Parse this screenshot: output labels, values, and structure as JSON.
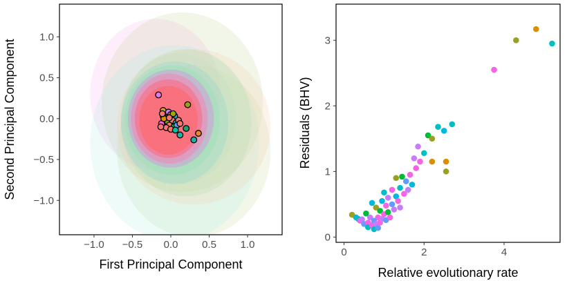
{
  "chart_data": [
    {
      "type": "scatter",
      "panel": "left",
      "title": "",
      "xlabel": "First Principal Component",
      "ylabel": "Second Principal Component",
      "xlim": [
        -1.45,
        1.45
      ],
      "ylim": [
        -1.42,
        1.4
      ],
      "xticks": [
        -1.0,
        -0.5,
        0.0,
        0.5,
        1.0
      ],
      "xtick_labels": [
        "−1.0",
        "−0.5",
        "0.0",
        "0.5",
        "1.0"
      ],
      "yticks": [
        -1.0,
        -0.5,
        0.0,
        0.5,
        1.0
      ],
      "ytick_labels": [
        "−1.0",
        "−0.5",
        "0.0",
        "0.5",
        "1.0"
      ],
      "grid": false,
      "legend": "none",
      "ellipses": [
        {
          "cx": -0.2,
          "cy": 0.3,
          "rx": 0.85,
          "ry": 0.92,
          "color": "#f8a0e8",
          "opacity": 0.18
        },
        {
          "cx": 0.15,
          "cy": 0.2,
          "rx": 1.05,
          "ry": 1.1,
          "color": "#c4d89c",
          "opacity": 0.22
        },
        {
          "cx": 0.3,
          "cy": -0.4,
          "rx": 1.0,
          "ry": 1.05,
          "color": "#c4dca0",
          "opacity": 0.22
        },
        {
          "cx": 0.05,
          "cy": -0.3,
          "rx": 1.1,
          "ry": 1.2,
          "color": "#a8ece0",
          "opacity": 0.2
        },
        {
          "cx": 0.3,
          "cy": -0.1,
          "rx": 1.0,
          "ry": 0.95,
          "color": "#f4d0b0",
          "opacity": 0.25
        },
        {
          "cx": 0.2,
          "cy": -0.05,
          "rx": 0.85,
          "ry": 0.9,
          "color": "#a8dca0",
          "opacity": 0.22
        },
        {
          "cx": 0.1,
          "cy": 0.0,
          "rx": 0.75,
          "ry": 0.8,
          "color": "#c0e0c0",
          "opacity": 0.3
        },
        {
          "cx": 0.05,
          "cy": -0.05,
          "rx": 0.7,
          "ry": 0.75,
          "color": "#8cd8d0",
          "opacity": 0.3
        },
        {
          "cx": 0.02,
          "cy": -0.02,
          "rx": 0.62,
          "ry": 0.67,
          "color": "#90e0b0",
          "opacity": 0.35
        },
        {
          "cx": 0.0,
          "cy": 0.0,
          "rx": 0.56,
          "ry": 0.6,
          "color": "#d890e0",
          "opacity": 0.45
        },
        {
          "cx": -0.02,
          "cy": 0.0,
          "rx": 0.5,
          "ry": 0.55,
          "color": "#f08ab8",
          "opacity": 0.6
        },
        {
          "cx": -0.03,
          "cy": 0.0,
          "rx": 0.44,
          "ry": 0.48,
          "color": "#f47890",
          "opacity": 0.8
        },
        {
          "cx": -0.03,
          "cy": -0.02,
          "rx": 0.38,
          "ry": 0.42,
          "color": "#f8707a",
          "opacity": 0.9
        }
      ],
      "points": [
        {
          "x": -0.16,
          "y": 0.29,
          "color": "#e07ae8"
        },
        {
          "x": -0.1,
          "y": 0.1,
          "color": "#d8a020"
        },
        {
          "x": 0.22,
          "y": 0.17,
          "color": "#9aa020"
        },
        {
          "x": 0.36,
          "y": -0.18,
          "color": "#e08a20"
        },
        {
          "x": 0.3,
          "y": -0.26,
          "color": "#20b0a0"
        },
        {
          "x": 0.12,
          "y": -0.2,
          "color": "#20b0a0"
        },
        {
          "x": 0.2,
          "y": -0.12,
          "color": "#20a070"
        },
        {
          "x": -0.05,
          "y": 0.05,
          "color": "#f8766d"
        },
        {
          "x": -0.1,
          "y": 0.03,
          "color": "#f8766d"
        },
        {
          "x": -0.03,
          "y": 0.08,
          "color": "#c77cff"
        },
        {
          "x": 0.0,
          "y": 0.05,
          "color": "#f8766d"
        },
        {
          "x": 0.05,
          "y": 0.03,
          "color": "#00b8e0"
        },
        {
          "x": -0.08,
          "y": -0.02,
          "color": "#f8766d"
        },
        {
          "x": -0.04,
          "y": -0.04,
          "color": "#7cae00"
        },
        {
          "x": 0.02,
          "y": -0.02,
          "color": "#f8766d"
        },
        {
          "x": 0.07,
          "y": -0.05,
          "color": "#00bfc4"
        },
        {
          "x": 0.1,
          "y": -0.02,
          "color": "#f8766d"
        },
        {
          "x": -0.12,
          "y": -0.06,
          "color": "#f564e3"
        },
        {
          "x": -0.02,
          "y": -0.08,
          "color": "#f8766d"
        },
        {
          "x": 0.04,
          "y": -0.1,
          "color": "#00ba38"
        },
        {
          "x": -0.06,
          "y": -0.11,
          "color": "#f8766d"
        },
        {
          "x": 0.08,
          "y": -0.08,
          "color": "#619cff"
        },
        {
          "x": 0.12,
          "y": -0.06,
          "color": "#f8766d"
        },
        {
          "x": -0.09,
          "y": 0.0,
          "color": "#d89000"
        },
        {
          "x": 0.0,
          "y": -0.13,
          "color": "#f8766d"
        },
        {
          "x": -0.13,
          "y": -0.1,
          "color": "#f8766d"
        },
        {
          "x": 0.03,
          "y": 0.06,
          "color": "#a3a500"
        },
        {
          "x": -0.02,
          "y": 0.01,
          "color": "#f8766d"
        },
        {
          "x": 0.06,
          "y": -0.14,
          "color": "#00c19f"
        },
        {
          "x": -0.11,
          "y": 0.06,
          "color": "#f8766d"
        }
      ]
    },
    {
      "type": "scatter",
      "panel": "right",
      "title": "",
      "xlabel": "Relative evolutionary rate",
      "ylabel": "Residuals (BHV)",
      "xlim": [
        -0.2,
        5.4
      ],
      "ylim": [
        -0.08,
        3.55
      ],
      "xticks": [
        0,
        2,
        4
      ],
      "xtick_labels": [
        "0",
        "2",
        "4"
      ],
      "yticks": [
        0,
        1,
        2,
        3
      ],
      "ytick_labels": [
        "0",
        "1",
        "2",
        "3"
      ],
      "grid": false,
      "legend": "none",
      "points": [
        {
          "x": 0.2,
          "y": 0.34,
          "color": "#9aa020"
        },
        {
          "x": 0.3,
          "y": 0.3,
          "color": "#00b8e0"
        },
        {
          "x": 0.35,
          "y": 0.28,
          "color": "#00bfc4"
        },
        {
          "x": 0.4,
          "y": 0.25,
          "color": "#f564e3"
        },
        {
          "x": 0.45,
          "y": 0.27,
          "color": "#c77cff"
        },
        {
          "x": 0.5,
          "y": 0.2,
          "color": "#619cff"
        },
        {
          "x": 0.55,
          "y": 0.36,
          "color": "#00ba38"
        },
        {
          "x": 0.6,
          "y": 0.22,
          "color": "#f564e3"
        },
        {
          "x": 0.6,
          "y": 0.15,
          "color": "#00bfc4"
        },
        {
          "x": 0.65,
          "y": 0.3,
          "color": "#c77cff"
        },
        {
          "x": 0.7,
          "y": 0.18,
          "color": "#f564e3"
        },
        {
          "x": 0.7,
          "y": 0.52,
          "color": "#00b8e0"
        },
        {
          "x": 0.75,
          "y": 0.25,
          "color": "#619cff"
        },
        {
          "x": 0.75,
          "y": 0.12,
          "color": "#00bfc4"
        },
        {
          "x": 0.8,
          "y": 0.45,
          "color": "#9aa020"
        },
        {
          "x": 0.8,
          "y": 0.2,
          "color": "#c77cff"
        },
        {
          "x": 0.85,
          "y": 0.3,
          "color": "#f564e3"
        },
        {
          "x": 0.85,
          "y": 0.14,
          "color": "#619cff"
        },
        {
          "x": 0.9,
          "y": 0.4,
          "color": "#00ba38"
        },
        {
          "x": 0.9,
          "y": 0.22,
          "color": "#f564e3"
        },
        {
          "x": 0.95,
          "y": 0.55,
          "color": "#00b8e0"
        },
        {
          "x": 0.95,
          "y": 0.28,
          "color": "#c77cff"
        },
        {
          "x": 1.0,
          "y": 0.35,
          "color": "#f564e3"
        },
        {
          "x": 1.0,
          "y": 0.68,
          "color": "#00bfc4"
        },
        {
          "x": 1.05,
          "y": 0.26,
          "color": "#619cff"
        },
        {
          "x": 1.05,
          "y": 0.48,
          "color": "#f564e3"
        },
        {
          "x": 1.1,
          "y": 0.6,
          "color": "#c77cff"
        },
        {
          "x": 1.1,
          "y": 0.38,
          "color": "#00ba38"
        },
        {
          "x": 1.15,
          "y": 0.3,
          "color": "#f564e3"
        },
        {
          "x": 1.2,
          "y": 0.72,
          "color": "#f564e3"
        },
        {
          "x": 1.2,
          "y": 0.5,
          "color": "#619cff"
        },
        {
          "x": 1.25,
          "y": 0.42,
          "color": "#c77cff"
        },
        {
          "x": 1.3,
          "y": 0.62,
          "color": "#00b8e0"
        },
        {
          "x": 1.3,
          "y": 0.9,
          "color": "#9aa020"
        },
        {
          "x": 1.35,
          "y": 0.55,
          "color": "#f564e3"
        },
        {
          "x": 1.4,
          "y": 0.75,
          "color": "#00bfc4"
        },
        {
          "x": 1.4,
          "y": 0.45,
          "color": "#c77cff"
        },
        {
          "x": 1.45,
          "y": 0.92,
          "color": "#00ba38"
        },
        {
          "x": 1.5,
          "y": 0.66,
          "color": "#f564e3"
        },
        {
          "x": 1.55,
          "y": 0.85,
          "color": "#619cff"
        },
        {
          "x": 1.6,
          "y": 0.72,
          "color": "#c77cff"
        },
        {
          "x": 1.65,
          "y": 0.95,
          "color": "#f564e3"
        },
        {
          "x": 1.7,
          "y": 0.8,
          "color": "#00b8e0"
        },
        {
          "x": 1.75,
          "y": 1.2,
          "color": "#c77cff"
        },
        {
          "x": 1.8,
          "y": 1.05,
          "color": "#f564e3"
        },
        {
          "x": 1.85,
          "y": 1.38,
          "color": "#c77cff"
        },
        {
          "x": 1.9,
          "y": 1.15,
          "color": "#f564e3"
        },
        {
          "x": 2.0,
          "y": 1.28,
          "color": "#00bfc4"
        },
        {
          "x": 2.1,
          "y": 1.55,
          "color": "#00ba38"
        },
        {
          "x": 2.2,
          "y": 1.5,
          "color": "#9aa020"
        },
        {
          "x": 2.2,
          "y": 1.15,
          "color": "#d89000"
        },
        {
          "x": 2.35,
          "y": 1.68,
          "color": "#00bfc4"
        },
        {
          "x": 2.5,
          "y": 1.62,
          "color": "#00b8e0"
        },
        {
          "x": 2.55,
          "y": 1.15,
          "color": "#d89000"
        },
        {
          "x": 2.55,
          "y": 1.0,
          "color": "#9aa020"
        },
        {
          "x": 2.7,
          "y": 1.72,
          "color": "#00bfc4"
        },
        {
          "x": 3.75,
          "y": 2.55,
          "color": "#f564e3"
        },
        {
          "x": 4.3,
          "y": 3.0,
          "color": "#9aa020"
        },
        {
          "x": 4.8,
          "y": 3.17,
          "color": "#d89000"
        },
        {
          "x": 5.2,
          "y": 2.95,
          "color": "#00bfc4"
        }
      ]
    }
  ]
}
